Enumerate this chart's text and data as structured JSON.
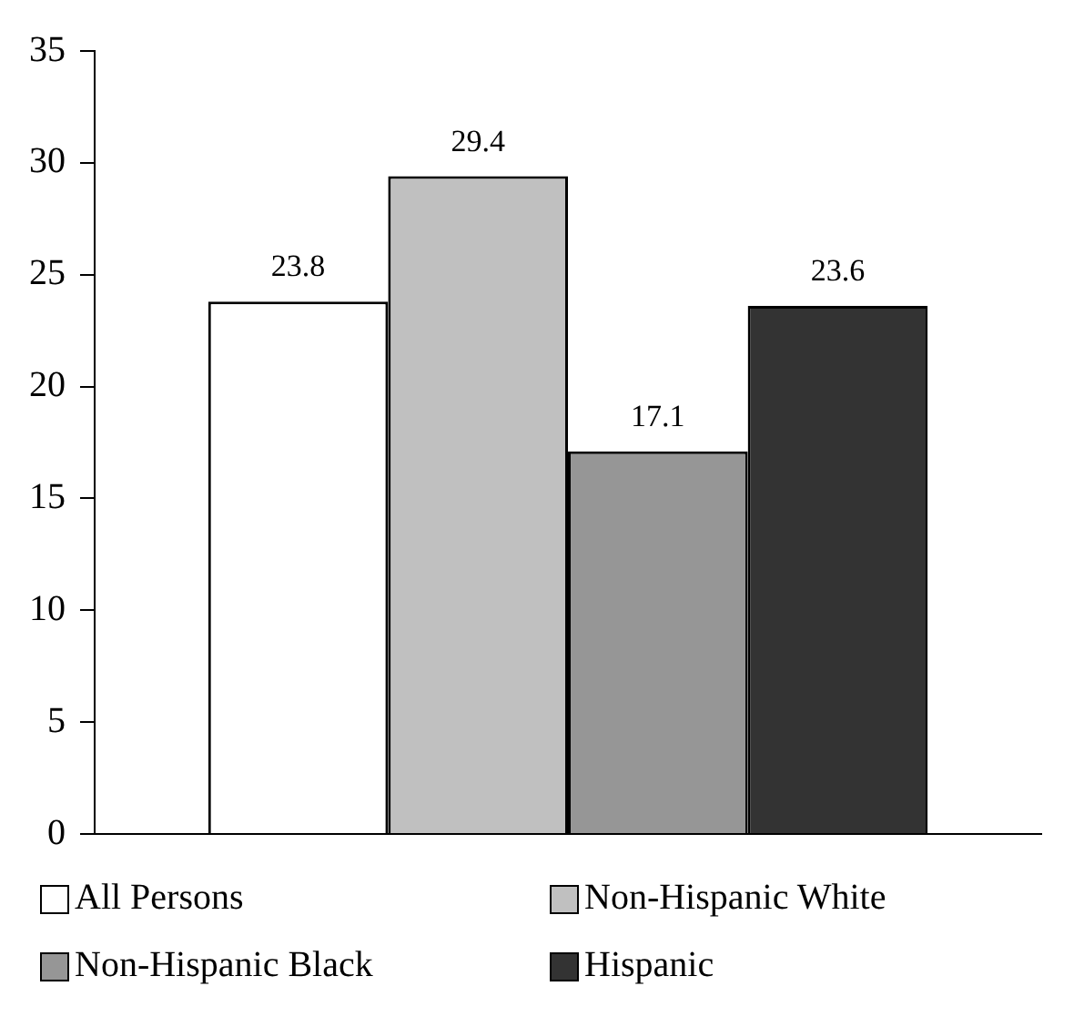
{
  "chart_data": {
    "type": "bar",
    "categories": [
      null
    ],
    "series": [
      {
        "name": "All Persons",
        "color": "#ffffff",
        "values": [
          23.8
        ]
      },
      {
        "name": "Non-Hispanic White",
        "color": "#c0c0c0",
        "values": [
          29.4
        ]
      },
      {
        "name": "Non-Hispanic Black",
        "color": "#969696",
        "values": [
          17.1
        ]
      },
      {
        "name": "Hispanic",
        "color": "#333333",
        "values": [
          23.6
        ]
      }
    ],
    "ylim": [
      0,
      35
    ],
    "yticks": [
      0,
      5,
      10,
      15,
      20,
      25,
      30,
      35
    ],
    "grid": false,
    "legend": "bottom",
    "data_labels": true,
    "tick_labels": "y"
  }
}
